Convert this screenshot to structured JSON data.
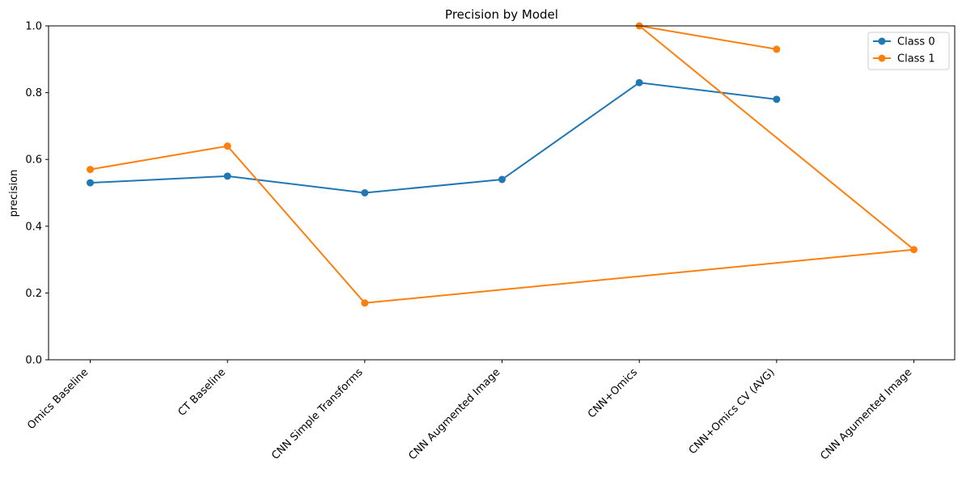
{
  "chart_data": {
    "type": "line",
    "title": "Precision by Model",
    "xlabel": "",
    "ylabel": "precision",
    "ylim": [
      0,
      1.0
    ],
    "yticks": [
      "0.0",
      "0.2",
      "0.4",
      "0.6",
      "0.8",
      "1.0"
    ],
    "categories": [
      "Omics Baseline",
      "CT Baseline",
      "CNN Simple Transforms",
      "CNN Augmented Image",
      "CNN+Omics",
      "CNN+Omics CV (AVG)",
      "CNN Agumented Image"
    ],
    "grid": false,
    "legend_position": "top-right",
    "series": [
      {
        "name": "Class 0",
        "color": "#1f77b4",
        "points": [
          {
            "category": "Omics Baseline",
            "value": 0.53
          },
          {
            "category": "CT Baseline",
            "value": 0.55
          },
          {
            "category": "CNN Simple Transforms",
            "value": 0.5
          },
          {
            "category": "CNN Augmented Image",
            "value": 0.54
          },
          {
            "category": "CNN+Omics",
            "value": 0.83
          },
          {
            "category": "CNN+Omics CV (AVG)",
            "value": 0.78
          }
        ]
      },
      {
        "name": "Class 1",
        "color": "#ff7f0e",
        "points": [
          {
            "category": "Omics Baseline",
            "value": 0.57
          },
          {
            "category": "CT Baseline",
            "value": 0.64
          },
          {
            "category": "CNN Simple Transforms",
            "value": 0.17
          },
          {
            "category": "CNN Agumented Image",
            "value": 0.33
          },
          {
            "category": "CNN+Omics",
            "value": 1.0
          },
          {
            "category": "CNN+Omics CV (AVG)",
            "value": 0.93
          }
        ]
      }
    ]
  }
}
